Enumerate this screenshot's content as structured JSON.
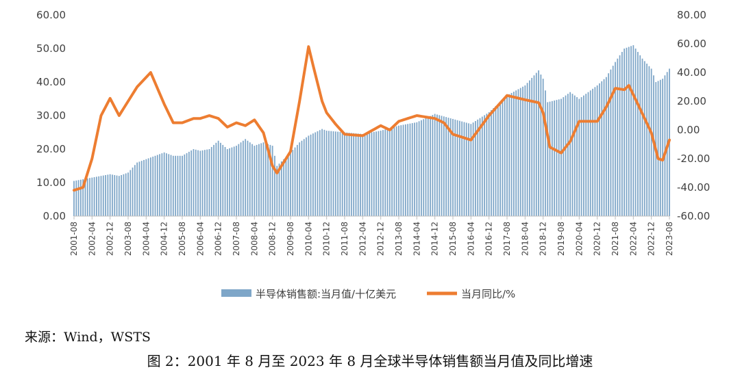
{
  "source_text": "来源：Wind，WSTS",
  "caption_text": "图 2：2001 年 8 月至 2023 年 8 月全球半导体销售额当月值及同比增速",
  "chart_data": {
    "type": "bar+line",
    "title": "",
    "left_axis": {
      "ylim": [
        0,
        60
      ],
      "ticks": [
        "0.00",
        "10.00",
        "20.00",
        "30.00",
        "40.00",
        "50.00",
        "60.00"
      ]
    },
    "right_axis": {
      "ylim": [
        -60,
        80
      ],
      "ticks": [
        "-60.00",
        "-40.00",
        "-20.00",
        "0.00",
        "20.00",
        "40.00",
        "60.00",
        "80.00"
      ]
    },
    "x_range": [
      "2001-08",
      "2023-08"
    ],
    "x_tick_labels": [
      "2001-08",
      "2002-04",
      "2002-12",
      "2003-08",
      "2004-04",
      "2004-12",
      "2005-08",
      "2006-04",
      "2006-12",
      "2007-08",
      "2008-04",
      "2008-12",
      "2009-08",
      "2010-04",
      "2010-12",
      "2011-08",
      "2012-04",
      "2012-12",
      "2013-08",
      "2014-04",
      "2014-12",
      "2015-08",
      "2016-04",
      "2016-12",
      "2017-08",
      "2018-04",
      "2018-12",
      "2019-08",
      "2020-04",
      "2020-12",
      "2021-08",
      "2022-04",
      "2022-12",
      "2023-08"
    ],
    "grid": false,
    "legend_position": "bottom",
    "colors": {
      "bars": "#7ea6c8",
      "line": "#ed7d31"
    },
    "series": [
      {
        "name": "半导体销售额:当月值/十亿美元",
        "type": "bar",
        "axis": "left",
        "keypoints": [
          [
            "2001-08",
            10.5
          ],
          [
            "2002-04",
            11.5
          ],
          [
            "2002-12",
            12.5
          ],
          [
            "2003-04",
            12.0
          ],
          [
            "2003-08",
            13.0
          ],
          [
            "2003-12",
            16.0
          ],
          [
            "2004-04",
            17.0
          ],
          [
            "2004-12",
            19.0
          ],
          [
            "2005-04",
            18.0
          ],
          [
            "2005-08",
            18.0
          ],
          [
            "2006-01",
            20.0
          ],
          [
            "2006-04",
            19.5
          ],
          [
            "2006-08",
            20.0
          ],
          [
            "2006-12",
            22.5
          ],
          [
            "2007-04",
            20.0
          ],
          [
            "2007-08",
            21.0
          ],
          [
            "2007-12",
            23.0
          ],
          [
            "2008-04",
            21.0
          ],
          [
            "2008-08",
            22.0
          ],
          [
            "2008-12",
            21.0
          ],
          [
            "2009-02",
            15.0
          ],
          [
            "2009-08",
            19.0
          ],
          [
            "2009-12",
            22.0
          ],
          [
            "2010-04",
            24.0
          ],
          [
            "2010-10",
            26.0
          ],
          [
            "2010-12",
            25.5
          ],
          [
            "2011-08",
            25.0
          ],
          [
            "2012-04",
            24.5
          ],
          [
            "2012-12",
            25.5
          ],
          [
            "2013-08",
            27.0
          ],
          [
            "2014-04",
            28.0
          ],
          [
            "2014-12",
            30.5
          ],
          [
            "2015-08",
            29.0
          ],
          [
            "2016-04",
            27.5
          ],
          [
            "2016-12",
            31.0
          ],
          [
            "2017-08",
            36.0
          ],
          [
            "2018-04",
            39.0
          ],
          [
            "2018-10",
            43.5
          ],
          [
            "2018-12",
            41.0
          ],
          [
            "2019-02",
            34.0
          ],
          [
            "2019-08",
            35.0
          ],
          [
            "2019-12",
            37.0
          ],
          [
            "2020-04",
            35.0
          ],
          [
            "2020-12",
            39.0
          ],
          [
            "2021-04",
            41.5
          ],
          [
            "2021-08",
            46.0
          ],
          [
            "2021-12",
            50.0
          ],
          [
            "2022-04",
            51.0
          ],
          [
            "2022-08",
            47.0
          ],
          [
            "2022-12",
            44.0
          ],
          [
            "2023-02",
            40.0
          ],
          [
            "2023-05",
            41.0
          ],
          [
            "2023-08",
            44.0
          ]
        ]
      },
      {
        "name": "当月同比/%",
        "type": "line",
        "axis": "right",
        "keypoints": [
          [
            "2001-08",
            -42
          ],
          [
            "2001-12",
            -40
          ],
          [
            "2002-04",
            -20
          ],
          [
            "2002-08",
            10
          ],
          [
            "2002-12",
            22
          ],
          [
            "2003-04",
            10
          ],
          [
            "2003-08",
            20
          ],
          [
            "2003-12",
            30
          ],
          [
            "2004-06",
            40
          ],
          [
            "2004-12",
            18
          ],
          [
            "2005-04",
            5
          ],
          [
            "2005-08",
            5
          ],
          [
            "2006-01",
            8
          ],
          [
            "2006-04",
            8
          ],
          [
            "2006-08",
            10
          ],
          [
            "2006-12",
            8
          ],
          [
            "2007-04",
            2
          ],
          [
            "2007-08",
            5
          ],
          [
            "2007-12",
            3
          ],
          [
            "2008-04",
            7
          ],
          [
            "2008-08",
            -2
          ],
          [
            "2008-12",
            -25
          ],
          [
            "2009-02",
            -30
          ],
          [
            "2009-08",
            -15
          ],
          [
            "2009-12",
            20
          ],
          [
            "2010-04",
            58
          ],
          [
            "2010-06",
            45
          ],
          [
            "2010-10",
            20
          ],
          [
            "2010-12",
            12
          ],
          [
            "2011-04",
            4
          ],
          [
            "2011-08",
            -3
          ],
          [
            "2012-04",
            -4
          ],
          [
            "2012-12",
            3
          ],
          [
            "2013-04",
            0
          ],
          [
            "2013-08",
            6
          ],
          [
            "2014-04",
            10
          ],
          [
            "2014-12",
            8
          ],
          [
            "2015-04",
            5
          ],
          [
            "2015-08",
            -3
          ],
          [
            "2016-04",
            -7
          ],
          [
            "2016-12",
            10
          ],
          [
            "2017-08",
            24
          ],
          [
            "2018-04",
            21
          ],
          [
            "2018-10",
            19
          ],
          [
            "2018-12",
            12
          ],
          [
            "2019-03",
            -12
          ],
          [
            "2019-08",
            -16
          ],
          [
            "2019-12",
            -8
          ],
          [
            "2020-04",
            6
          ],
          [
            "2020-12",
            6
          ],
          [
            "2021-04",
            16
          ],
          [
            "2021-08",
            29
          ],
          [
            "2021-12",
            28
          ],
          [
            "2022-02",
            31
          ],
          [
            "2022-06",
            18
          ],
          [
            "2022-12",
            -2
          ],
          [
            "2023-03",
            -20
          ],
          [
            "2023-05",
            -21
          ],
          [
            "2023-08",
            -7
          ]
        ]
      }
    ]
  }
}
